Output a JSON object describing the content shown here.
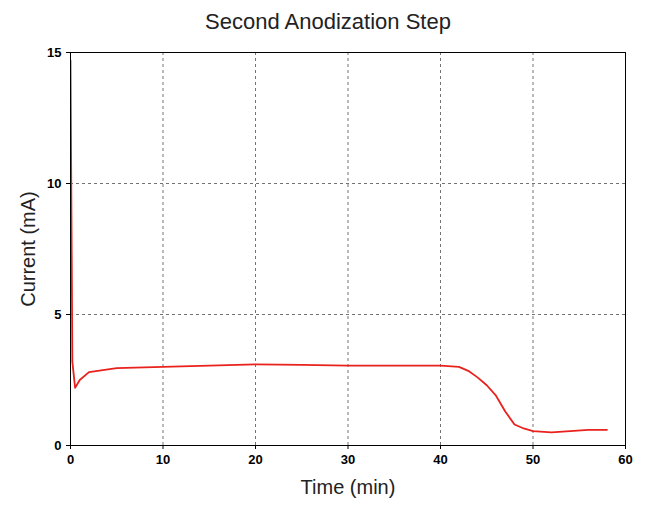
{
  "chart_data": {
    "type": "line",
    "title": "Second Anodization Step",
    "x_label": "Time (min)",
    "y_label": "Current (mA)",
    "x": [
      0,
      0.2,
      0.5,
      1,
      2,
      5,
      10,
      15,
      20,
      25,
      30,
      35,
      40,
      42,
      43,
      44,
      45,
      46,
      47,
      48,
      49,
      50,
      52,
      54,
      56,
      58
    ],
    "series": [
      {
        "name": "Current",
        "color": "#e8221c",
        "values": [
          14.7,
          3.2,
          2.2,
          2.5,
          2.8,
          2.95,
          3.0,
          3.05,
          3.1,
          3.08,
          3.05,
          3.05,
          3.05,
          3.0,
          2.85,
          2.6,
          2.3,
          1.9,
          1.3,
          0.8,
          0.65,
          0.55,
          0.5,
          0.55,
          0.6,
          0.6
        ]
      }
    ],
    "xlim": [
      0,
      60
    ],
    "xticks": [
      0,
      10,
      20,
      30,
      40,
      50,
      60
    ],
    "ylim": [
      0,
      15
    ],
    "yticks": [
      0,
      5,
      10,
      15
    ],
    "grid": true
  }
}
